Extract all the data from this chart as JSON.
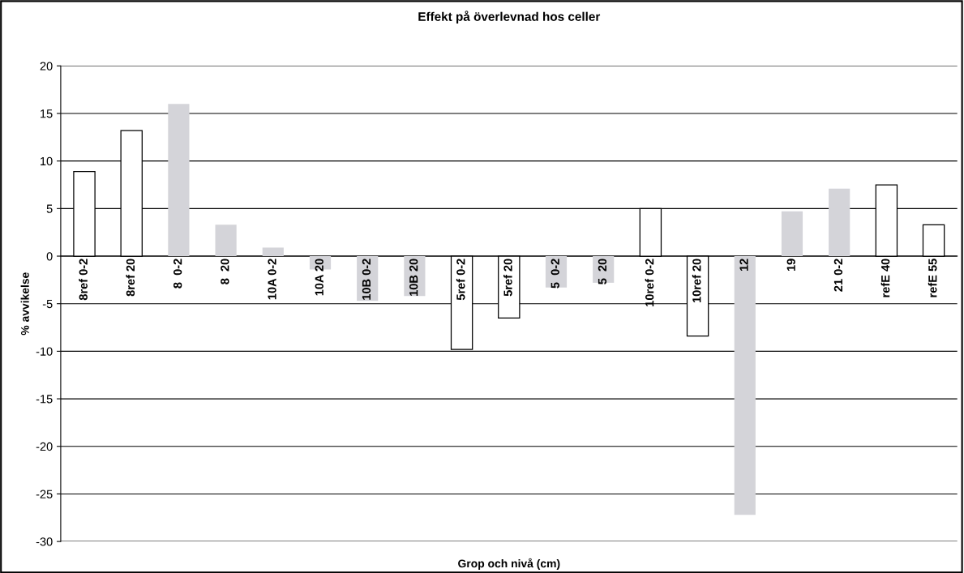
{
  "chart_data": {
    "type": "bar",
    "title": "Effekt på överlevnad hos celler",
    "xlabel": "Grop och nivå (cm)",
    "ylabel": "% avvikelse",
    "categories": [
      "8ref 0-2",
      "8ref 20",
      "8  0-2",
      "8  20",
      "10A 0-2",
      "10A 20",
      "10B 0-2",
      "10B 20",
      "5ref 0-2",
      "5ref 20",
      "5  0-2",
      "5  20",
      "10ref 0-2",
      "10ref 20",
      "12",
      "19",
      "21 0-2",
      "refE 40",
      "refE 55"
    ],
    "values": [
      8.9,
      13.2,
      16.0,
      3.3,
      0.9,
      -1.4,
      -4.7,
      -4.2,
      -9.8,
      -6.5,
      -3.3,
      -2.8,
      5.0,
      -8.4,
      -27.2,
      4.7,
      7.1,
      7.5,
      3.3
    ],
    "colors": [
      "#ffffff",
      "#ffffff",
      "#d4d4d9",
      "#d4d4d9",
      "#d4d4d9",
      "#d4d4d9",
      "#d4d4d9",
      "#d4d4d9",
      "#ffffff",
      "#ffffff",
      "#d4d4d9",
      "#d4d4d9",
      "#ffffff",
      "#ffffff",
      "#d4d4d9",
      "#d4d4d9",
      "#d4d4d9",
      "#ffffff",
      "#ffffff"
    ],
    "ylim": [
      -30,
      20
    ],
    "yticks": [
      -30,
      -25,
      -20,
      -15,
      -10,
      -5,
      0,
      5,
      10,
      15,
      20
    ],
    "grid": "y",
    "legend": false
  }
}
